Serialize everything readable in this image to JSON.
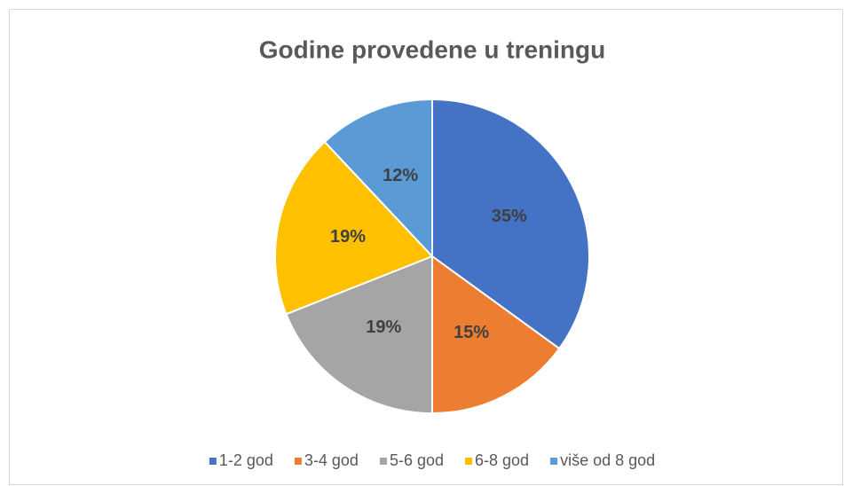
{
  "chart_data": {
    "type": "pie",
    "title": "Godine provedene u treningu",
    "categories": [
      "1-2 god",
      "3-4 god",
      "5-6 god",
      "6-8 god",
      "više od 8 god"
    ],
    "values": [
      35,
      15,
      19,
      19,
      12
    ],
    "value_labels": [
      "35%",
      "15%",
      "19%",
      "19%",
      "12%"
    ],
    "colors": [
      "#4472c4",
      "#ed7d31",
      "#a5a5a5",
      "#ffc000",
      "#5b9bd5"
    ],
    "legend": "bottom"
  }
}
